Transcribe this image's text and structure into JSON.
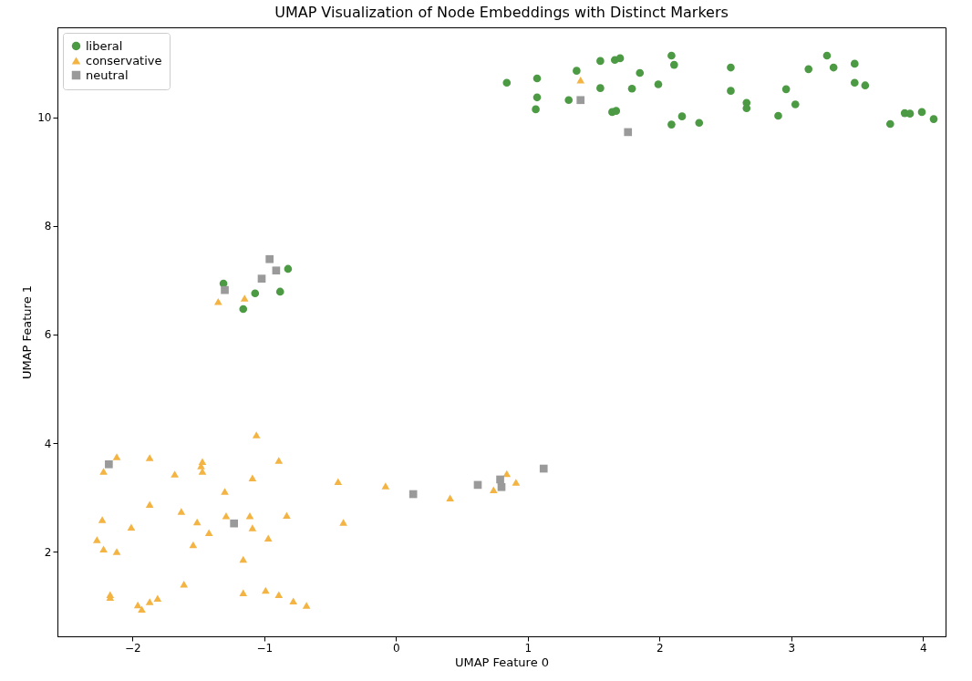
{
  "chart_data": {
    "type": "scatter",
    "title": "UMAP Visualization of Node Embeddings with Distinct Markers",
    "xlabel": "UMAP Feature 0",
    "ylabel": "UMAP Feature 1",
    "xlim": [
      -2.57,
      4.17
    ],
    "ylim": [
      0.44,
      11.66
    ],
    "xticks": [
      -2,
      -1,
      0,
      1,
      2,
      3,
      4
    ],
    "yticks": [
      2,
      4,
      6,
      8,
      10
    ],
    "grid": false,
    "legend": "top left",
    "series": [
      {
        "name": "liberal",
        "color": "#4c9a43",
        "marker": "circle",
        "x": [
          0.84,
          1.07,
          1.07,
          1.06,
          1.31,
          1.37,
          1.55,
          1.55,
          1.64,
          1.67,
          1.66,
          1.7,
          1.79,
          1.85,
          1.99,
          2.09,
          2.11,
          2.09,
          2.17,
          2.3,
          2.54,
          2.54,
          2.66,
          2.66,
          2.9,
          2.96,
          3.03,
          3.13,
          3.27,
          3.32,
          3.48,
          3.48,
          3.56,
          3.75,
          3.86,
          3.9,
          3.99,
          4.08,
          -1.31,
          -0.82,
          -1.07,
          -0.88,
          -1.16
        ],
        "values": [
          10.64,
          10.72,
          10.37,
          10.15,
          10.32,
          10.86,
          11.04,
          10.54,
          10.1,
          10.12,
          11.06,
          11.09,
          10.53,
          10.82,
          10.61,
          11.14,
          10.97,
          9.87,
          10.02,
          9.9,
          10.49,
          10.92,
          10.27,
          10.17,
          10.03,
          10.52,
          10.24,
          10.89,
          11.14,
          10.92,
          10.99,
          10.64,
          10.59,
          9.88,
          10.08,
          10.07,
          10.1,
          9.97,
          6.94,
          7.21,
          6.76,
          6.79,
          6.47
        ]
      },
      {
        "name": "conservative",
        "color": "#f3b443",
        "marker": "triangle",
        "x": [
          1.4,
          -1.35,
          -1.15,
          -1.06,
          -2.12,
          -1.87,
          -1.47,
          -1.48,
          -1.47,
          -0.89,
          -2.22,
          -1.68,
          -1.09,
          -0.44,
          -1.3,
          -1.87,
          -1.63,
          -2.23,
          -1.29,
          -1.11,
          -0.83,
          -0.4,
          -2.01,
          -1.51,
          -1.09,
          -1.42,
          -0.97,
          -2.27,
          -1.54,
          -2.22,
          -2.12,
          -1.16,
          -1.61,
          -2.17,
          -2.17,
          -1.16,
          -0.99,
          -0.89,
          -0.78,
          -0.68,
          -1.81,
          -1.87,
          -1.96,
          -1.93,
          -0.08,
          0.41,
          0.74,
          0.84,
          0.91
        ],
        "values": [
          10.69,
          6.61,
          6.67,
          4.15,
          3.75,
          3.73,
          3.66,
          3.58,
          3.48,
          3.68,
          3.48,
          3.43,
          3.36,
          3.29,
          3.11,
          2.87,
          2.74,
          2.59,
          2.66,
          2.66,
          2.67,
          2.54,
          2.45,
          2.55,
          2.44,
          2.35,
          2.25,
          2.22,
          2.13,
          2.05,
          2.0,
          1.86,
          1.4,
          1.21,
          1.16,
          1.24,
          1.29,
          1.21,
          1.09,
          1.01,
          1.14,
          1.08,
          1.02,
          0.94,
          3.21,
          2.99,
          3.14,
          3.44,
          3.28
        ]
      },
      {
        "name": "neutral",
        "color": "#9a9a9a",
        "marker": "square",
        "x": [
          1.4,
          1.76,
          -1.3,
          -1.02,
          -0.96,
          -0.91,
          -2.18,
          -1.23,
          0.13,
          0.62,
          0.79,
          0.8,
          1.12
        ],
        "values": [
          10.32,
          9.73,
          6.82,
          7.03,
          7.39,
          7.18,
          3.61,
          2.52,
          3.06,
          3.23,
          3.33,
          3.19,
          3.53
        ]
      }
    ]
  }
}
